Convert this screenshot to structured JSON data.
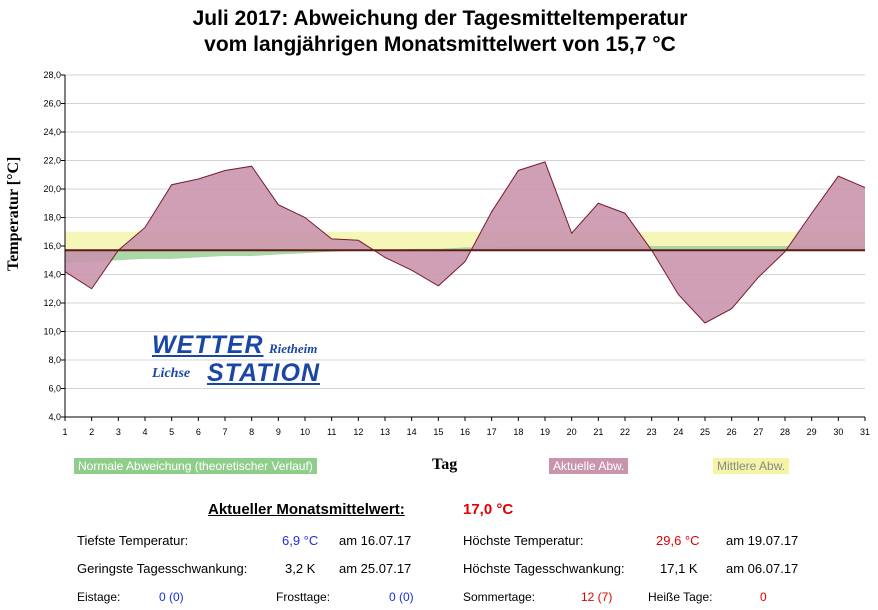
{
  "title_line1": "Juli 2017: Abweichung der Tagesmitteltemperatur",
  "title_line2": "vom langjährigen Monatsmittelwert von 15,7 °C",
  "chart_data": {
    "type": "area",
    "x": [
      1,
      2,
      3,
      4,
      5,
      6,
      7,
      8,
      9,
      10,
      11,
      12,
      13,
      14,
      15,
      16,
      17,
      18,
      19,
      20,
      21,
      22,
      23,
      24,
      25,
      26,
      27,
      28,
      29,
      30,
      31
    ],
    "x_tick_labels": [
      "1",
      "2",
      "3",
      "4",
      "5",
      "6",
      "7",
      "8",
      "9",
      "10",
      "11",
      "12",
      "13",
      "14",
      "15",
      "16",
      "17",
      "18",
      "19",
      "20",
      "21",
      "22",
      "23",
      "24",
      "25",
      "26",
      "27",
      "28",
      "29",
      "30",
      "31"
    ],
    "y_ticks": [
      4.0,
      6.0,
      8.0,
      10.0,
      12.0,
      14.0,
      16.0,
      18.0,
      20.0,
      22.0,
      24.0,
      26.0,
      28.0
    ],
    "y_tick_labels": [
      "4,0",
      "6,0",
      "8,0",
      "10,0",
      "12,0",
      "14,0",
      "16,0",
      "18,0",
      "20,0",
      "22,0",
      "24,0",
      "26,0",
      "28,0"
    ],
    "ylim": [
      4,
      28
    ],
    "xlim": [
      1,
      31
    ],
    "baseline": 15.7,
    "xlabel": "Tag",
    "ylabel": "Temperatur [°C]",
    "series": [
      {
        "name": "Aktuelle Abw.",
        "color": "#c995ad",
        "line_color": "#7a1a2a",
        "values": [
          14.2,
          13.0,
          15.7,
          17.3,
          20.3,
          20.7,
          21.3,
          21.6,
          18.9,
          18.0,
          16.5,
          16.4,
          15.2,
          14.3,
          13.2,
          14.9,
          18.4,
          21.3,
          21.9,
          16.9,
          19.0,
          18.3,
          15.7,
          12.6,
          10.6,
          11.6,
          13.8,
          15.6,
          18.3,
          20.9,
          20.1
        ]
      },
      {
        "name": "Normale Abweichung (theoretischer Verlauf)",
        "color": "#a9d8a6",
        "values": [
          14.8,
          14.9,
          15.0,
          15.1,
          15.1,
          15.2,
          15.3,
          15.3,
          15.4,
          15.5,
          15.6,
          15.7,
          15.7,
          15.8,
          15.8,
          15.9,
          15.9,
          16.0,
          16.0,
          16.0,
          16.0,
          16.0,
          16.0,
          16.0,
          16.0,
          16.0,
          16.0,
          16.0,
          16.0,
          16.0,
          16.0
        ]
      },
      {
        "name": "Mittlere Abw.",
        "color": "#f6f6b8",
        "band": [
          15.7,
          17.0
        ]
      }
    ]
  },
  "legend": {
    "normal": "Normale Abweichung (theoretischer Verlauf)",
    "actual": "Aktuelle Abw.",
    "mean": "Mittlere Abw.",
    "normal_color": "#8fce8a",
    "actual_color": "#c995ad",
    "mean_color": "#f4f4a6"
  },
  "logo": {
    "line1": "WETTER",
    "line1b": "Rietheim",
    "line2": "Lichse",
    "line2b": "STATION"
  },
  "stats": {
    "monthly_mean_label": "Aktueller Monatsmittelwert:",
    "monthly_mean_value": "17,0 °C",
    "min_temp_label": "Tiefste Temperatur:",
    "min_temp_value": "6,9 °C",
    "min_temp_date": "am 16.07.17",
    "max_temp_label": "Höchste Temperatur:",
    "max_temp_value": "29,6 °C",
    "max_temp_date": "am 19.07.17",
    "min_range_label": "Geringste Tagesschwankung:",
    "min_range_value": "3,2 K",
    "min_range_date": "am 25.07.17",
    "max_range_label": "Höchste Tagesschwankung:",
    "max_range_value": "17,1 K",
    "max_range_date": "am 06.07.17",
    "ice_days_label": "Eistage:",
    "ice_days_value": "0 (0)",
    "frost_days_label": "Frosttage:",
    "frost_days_value": "0 (0)",
    "summer_days_label": "Sommertage:",
    "summer_days_value": "12 (7)",
    "hot_days_label": "Heiße Tage:",
    "hot_days_value": "0"
  }
}
